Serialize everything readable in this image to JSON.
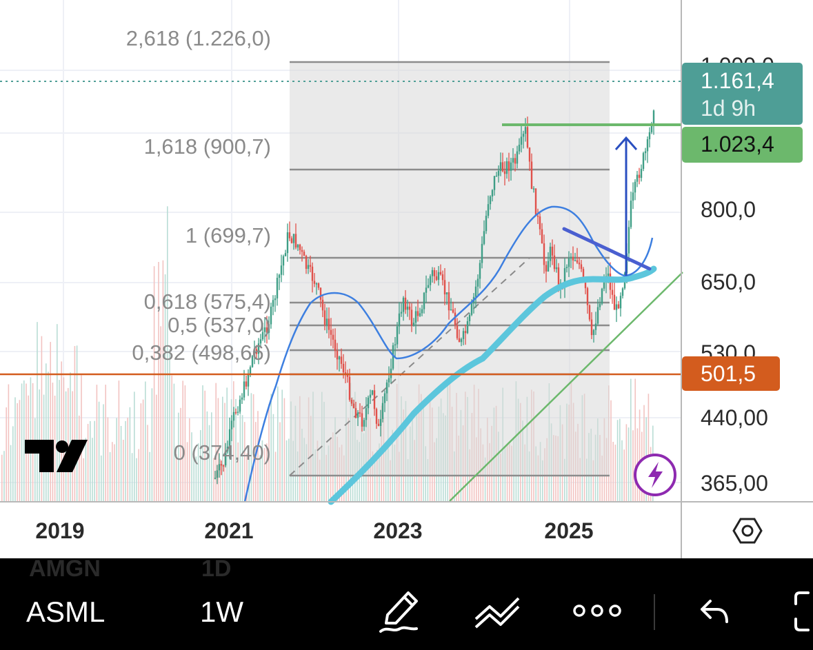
{
  "chart_data": {
    "type": "candlestick",
    "symbol": "ASML",
    "interval": "1W",
    "price_axis": {
      "labels": [
        "800,0",
        "650,0",
        "530,0",
        "440,00",
        "365,00"
      ],
      "clipped_top_label": "1.000,0",
      "scale": "log"
    },
    "time_axis": {
      "labels": [
        "2019",
        "2021",
        "2023",
        "2025"
      ]
    },
    "price_tags": [
      {
        "line1": "1.161,4",
        "line2": "1d 9h",
        "color": "#4e9e96"
      },
      {
        "line1": "1.023,4",
        "color": "#6cb86c"
      },
      {
        "line1": "501,5",
        "color": "#d35c1e"
      }
    ],
    "fibonacci_levels": [
      {
        "label": "2,618 (1.226,0)",
        "ratio": 2.618,
        "price": 1226.0
      },
      {
        "label": "1,618 (900,7)",
        "ratio": 1.618,
        "price": 900.7
      },
      {
        "label": "1 (699,7)",
        "ratio": 1,
        "price": 699.7
      },
      {
        "label": "0,618 (575,4)",
        "ratio": 0.618,
        "price": 575.4
      },
      {
        "label": "0,5 (537,0)",
        "ratio": 0.5,
        "price": 537.0
      },
      {
        "label": "0,382 (498,66)",
        "ratio": 0.382,
        "price": 498.66
      },
      {
        "label": "0 (374,40)",
        "ratio": 0,
        "price": 374.4
      }
    ],
    "horizontal_lines": [
      {
        "price": 1161.4,
        "style": "dotted",
        "color": "#4e9e96"
      },
      {
        "price": 1023.4,
        "style": "solid",
        "color": "#6cb86c"
      },
      {
        "price": 501.5,
        "style": "solid",
        "color": "#d35c1e"
      }
    ],
    "colors": {
      "up": "#3e9e86",
      "down": "#e0504a",
      "ma_fast": "#3d7fe0",
      "ma_slow": "#5cc6dc",
      "trendline": "#6cb86c",
      "wedge": "#4a5fd0",
      "arrow": "#2a4fc0"
    }
  },
  "toolbar": {
    "symbol": "ASML",
    "interval": "1W",
    "ghost_symbol": "AMGN",
    "ghost_interval": "1D",
    "icons": [
      "pencil-icon",
      "line-tools-icon",
      "more-icon",
      "undo-icon"
    ]
  },
  "icons": [
    "tradingview-logo",
    "lightning-icon",
    "settings-hexagon-icon"
  ]
}
